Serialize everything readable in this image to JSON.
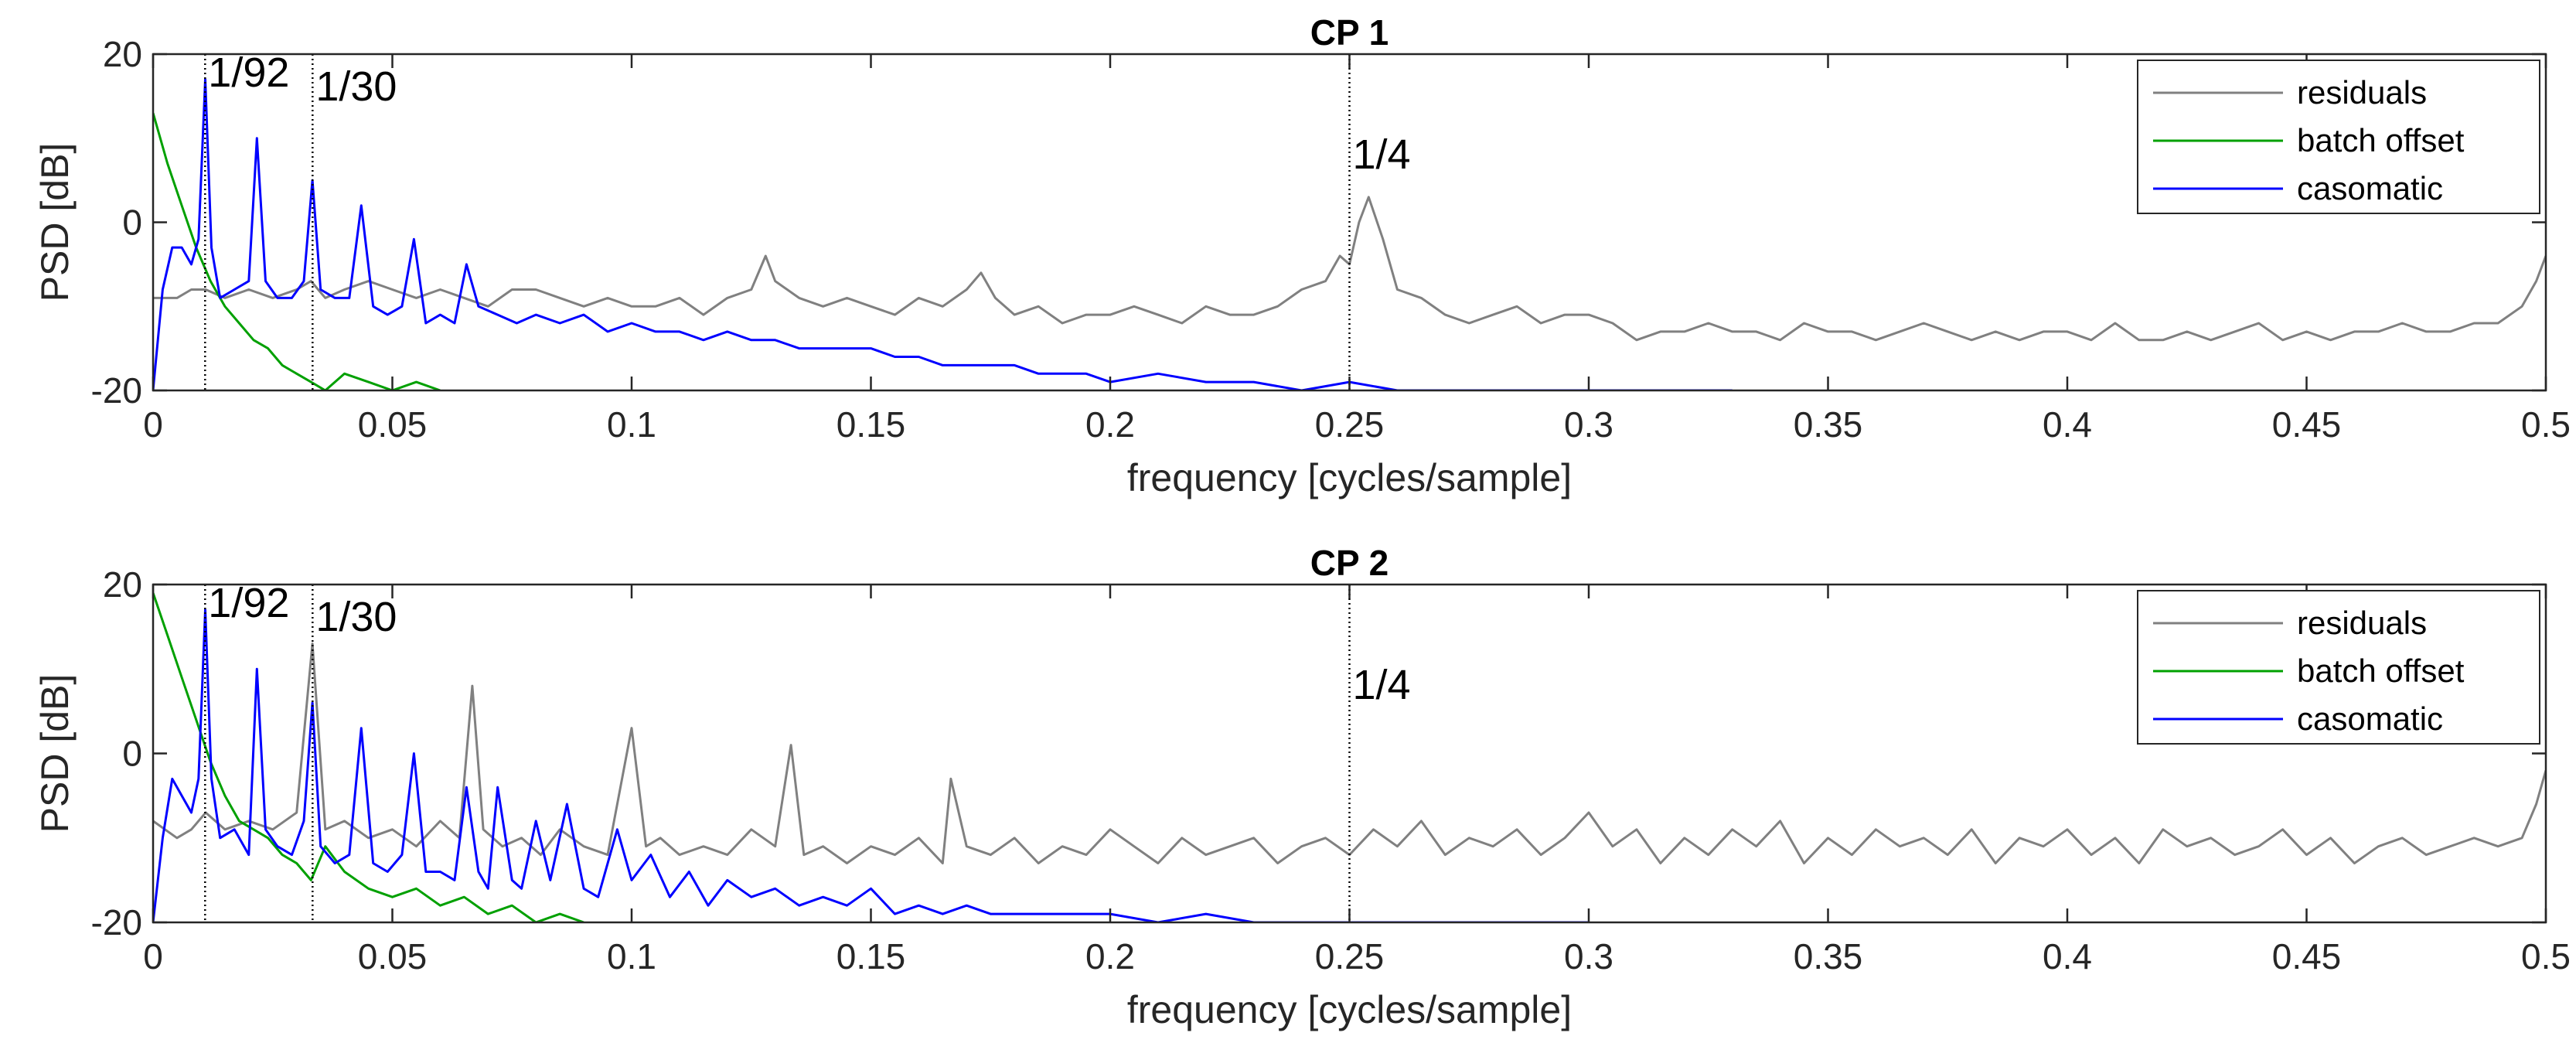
{
  "figure": {
    "colors": {
      "residuals": "#808080",
      "batch_offset": "#00a000",
      "casomatic": "#0000ff",
      "axes": "#262626",
      "guide": "#000000"
    }
  },
  "chart_data": [
    {
      "type": "line",
      "title": "CP 1",
      "xlabel": "frequency [cycles/sample]",
      "ylabel": "PSD [dB]",
      "xlim": [
        0,
        0.5
      ],
      "ylim": [
        -20,
        20
      ],
      "xticks": [
        "0",
        "0.05",
        "0.1",
        "0.15",
        "0.2",
        "0.25",
        "0.3",
        "0.35",
        "0.4",
        "0.45",
        "0.5"
      ],
      "yticks": [
        "-20",
        "0",
        "20"
      ],
      "grid": false,
      "legend_position": "top-right",
      "vlines": [
        {
          "x": 0.01087,
          "label": "1/92"
        },
        {
          "x": 0.03333,
          "label": "1/30"
        },
        {
          "x": 0.25,
          "label": "1/4"
        }
      ],
      "series": [
        {
          "name": "residuals",
          "color": "#808080",
          "x": [
            0.0,
            0.005,
            0.008,
            0.011,
            0.015,
            0.02,
            0.025,
            0.03,
            0.033,
            0.036,
            0.04,
            0.045,
            0.05,
            0.055,
            0.06,
            0.065,
            0.07,
            0.075,
            0.08,
            0.085,
            0.09,
            0.095,
            0.1,
            0.105,
            0.11,
            0.115,
            0.12,
            0.125,
            0.128,
            0.13,
            0.135,
            0.14,
            0.145,
            0.15,
            0.155,
            0.16,
            0.165,
            0.17,
            0.173,
            0.176,
            0.18,
            0.185,
            0.19,
            0.195,
            0.2,
            0.205,
            0.21,
            0.215,
            0.22,
            0.225,
            0.23,
            0.235,
            0.24,
            0.245,
            0.248,
            0.25,
            0.252,
            0.254,
            0.257,
            0.26,
            0.265,
            0.27,
            0.275,
            0.28,
            0.285,
            0.29,
            0.295,
            0.3,
            0.305,
            0.31,
            0.315,
            0.32,
            0.325,
            0.33,
            0.335,
            0.34,
            0.345,
            0.35,
            0.355,
            0.36,
            0.365,
            0.37,
            0.375,
            0.38,
            0.385,
            0.39,
            0.395,
            0.4,
            0.405,
            0.41,
            0.415,
            0.42,
            0.425,
            0.43,
            0.435,
            0.44,
            0.445,
            0.45,
            0.455,
            0.46,
            0.465,
            0.47,
            0.475,
            0.48,
            0.485,
            0.49,
            0.495,
            0.498,
            0.5
          ],
          "y": [
            -9,
            -9,
            -8,
            -8,
            -9,
            -8,
            -9,
            -8,
            -7,
            -9,
            -8,
            -7,
            -8,
            -9,
            -8,
            -9,
            -10,
            -8,
            -8,
            -9,
            -10,
            -9,
            -10,
            -10,
            -9,
            -11,
            -9,
            -8,
            -4,
            -7,
            -9,
            -10,
            -9,
            -10,
            -11,
            -9,
            -10,
            -8,
            -6,
            -9,
            -11,
            -10,
            -12,
            -11,
            -11,
            -10,
            -11,
            -12,
            -10,
            -11,
            -11,
            -10,
            -8,
            -7,
            -4,
            -5,
            0,
            3,
            -2,
            -8,
            -9,
            -11,
            -12,
            -11,
            -10,
            -12,
            -11,
            -11,
            -12,
            -14,
            -13,
            -13,
            -12,
            -13,
            -13,
            -14,
            -12,
            -13,
            -13,
            -14,
            -13,
            -12,
            -13,
            -14,
            -13,
            -14,
            -13,
            -13,
            -14,
            -12,
            -14,
            -14,
            -13,
            -14,
            -13,
            -12,
            -14,
            -13,
            -14,
            -13,
            -13,
            -12,
            -13,
            -13,
            -12,
            -12,
            -10,
            -7,
            -4
          ]
        },
        {
          "name": "batch offset",
          "color": "#00a000",
          "x": [
            0.0,
            0.003,
            0.006,
            0.009,
            0.012,
            0.015,
            0.018,
            0.021,
            0.024,
            0.027,
            0.03,
            0.033,
            0.036,
            0.04,
            0.045,
            0.05,
            0.055,
            0.06
          ],
          "y": [
            13,
            7,
            2,
            -3,
            -7,
            -10,
            -12,
            -14,
            -15,
            -17,
            -18,
            -19,
            -20,
            -18,
            -19,
            -20,
            -19,
            -20
          ]
        },
        {
          "name": "casomatic",
          "color": "#0000ff",
          "x": [
            0.0,
            0.002,
            0.004,
            0.006,
            0.008,
            0.0095,
            0.0109,
            0.0122,
            0.014,
            0.017,
            0.02,
            0.0217,
            0.0235,
            0.026,
            0.029,
            0.0315,
            0.0333,
            0.035,
            0.038,
            0.041,
            0.0435,
            0.046,
            0.049,
            0.052,
            0.0545,
            0.057,
            0.06,
            0.063,
            0.0655,
            0.068,
            0.072,
            0.076,
            0.08,
            0.085,
            0.09,
            0.095,
            0.1,
            0.105,
            0.11,
            0.115,
            0.12,
            0.125,
            0.13,
            0.135,
            0.14,
            0.145,
            0.15,
            0.155,
            0.16,
            0.165,
            0.17,
            0.175,
            0.18,
            0.185,
            0.19,
            0.195,
            0.2,
            0.21,
            0.22,
            0.23,
            0.24,
            0.25,
            0.26,
            0.27,
            0.28,
            0.29,
            0.3,
            0.31,
            0.32,
            0.33
          ],
          "y": [
            -20,
            -8,
            -3,
            -3,
            -5,
            -2,
            17,
            -3,
            -9,
            -8,
            -7,
            10,
            -7,
            -9,
            -9,
            -7,
            5,
            -8,
            -9,
            -9,
            2,
            -10,
            -11,
            -10,
            -2,
            -12,
            -11,
            -12,
            -5,
            -10,
            -11,
            -12,
            -11,
            -12,
            -11,
            -13,
            -12,
            -13,
            -13,
            -14,
            -13,
            -14,
            -14,
            -15,
            -15,
            -15,
            -15,
            -16,
            -16,
            -17,
            -17,
            -17,
            -17,
            -18,
            -18,
            -18,
            -19,
            -18,
            -19,
            -19,
            -20,
            -19,
            -20,
            -20,
            -20,
            -20,
            -20,
            -20,
            -20,
            -20
          ]
        }
      ]
    },
    {
      "type": "line",
      "title": "CP 2",
      "xlabel": "frequency [cycles/sample]",
      "ylabel": "PSD [dB]",
      "xlim": [
        0,
        0.5
      ],
      "ylim": [
        -20,
        20
      ],
      "xticks": [
        "0",
        "0.05",
        "0.1",
        "0.15",
        "0.2",
        "0.25",
        "0.3",
        "0.35",
        "0.4",
        "0.45",
        "0.5"
      ],
      "yticks": [
        "-20",
        "0",
        "20"
      ],
      "grid": false,
      "legend_position": "top-right",
      "vlines": [
        {
          "x": 0.01087,
          "label": "1/92"
        },
        {
          "x": 0.03333,
          "label": "1/30"
        },
        {
          "x": 0.25,
          "label": "1/4"
        }
      ],
      "series": [
        {
          "name": "residuals",
          "color": "#808080",
          "x": [
            0.0,
            0.005,
            0.008,
            0.011,
            0.015,
            0.02,
            0.025,
            0.03,
            0.0333,
            0.036,
            0.04,
            0.045,
            0.05,
            0.055,
            0.06,
            0.064,
            0.0667,
            0.069,
            0.073,
            0.077,
            0.081,
            0.085,
            0.09,
            0.095,
            0.1,
            0.103,
            0.106,
            0.11,
            0.115,
            0.12,
            0.125,
            0.13,
            0.1333,
            0.136,
            0.14,
            0.145,
            0.15,
            0.155,
            0.16,
            0.165,
            0.1667,
            0.17,
            0.175,
            0.18,
            0.185,
            0.19,
            0.195,
            0.2,
            0.205,
            0.21,
            0.215,
            0.22,
            0.225,
            0.23,
            0.235,
            0.24,
            0.245,
            0.25,
            0.255,
            0.26,
            0.265,
            0.27,
            0.275,
            0.28,
            0.285,
            0.29,
            0.295,
            0.3,
            0.305,
            0.31,
            0.315,
            0.32,
            0.325,
            0.33,
            0.335,
            0.34,
            0.345,
            0.35,
            0.355,
            0.36,
            0.365,
            0.37,
            0.375,
            0.38,
            0.385,
            0.39,
            0.395,
            0.4,
            0.405,
            0.41,
            0.415,
            0.42,
            0.425,
            0.43,
            0.435,
            0.44,
            0.445,
            0.45,
            0.455,
            0.46,
            0.465,
            0.47,
            0.475,
            0.48,
            0.485,
            0.49,
            0.495,
            0.498,
            0.5
          ],
          "y": [
            -8,
            -10,
            -9,
            -7,
            -9,
            -8,
            -9,
            -7,
            13,
            -9,
            -8,
            -10,
            -9,
            -11,
            -8,
            -10,
            8,
            -9,
            -11,
            -10,
            -12,
            -9,
            -11,
            -12,
            3,
            -11,
            -10,
            -12,
            -11,
            -12,
            -9,
            -11,
            1,
            -12,
            -11,
            -13,
            -11,
            -12,
            -10,
            -13,
            -3,
            -11,
            -12,
            -10,
            -13,
            -11,
            -12,
            -9,
            -11,
            -13,
            -10,
            -12,
            -11,
            -10,
            -13,
            -11,
            -10,
            -12,
            -9,
            -11,
            -8,
            -12,
            -10,
            -11,
            -9,
            -12,
            -10,
            -7,
            -11,
            -9,
            -13,
            -10,
            -12,
            -9,
            -11,
            -8,
            -13,
            -10,
            -12,
            -9,
            -11,
            -10,
            -12,
            -9,
            -13,
            -10,
            -11,
            -9,
            -12,
            -10,
            -13,
            -9,
            -11,
            -10,
            -12,
            -11,
            -9,
            -12,
            -10,
            -13,
            -11,
            -10,
            -12,
            -11,
            -10,
            -11,
            -10,
            -6,
            -2
          ]
        },
        {
          "name": "batch offset",
          "color": "#00a000",
          "x": [
            0.0,
            0.003,
            0.006,
            0.009,
            0.012,
            0.015,
            0.018,
            0.021,
            0.024,
            0.027,
            0.03,
            0.033,
            0.036,
            0.04,
            0.045,
            0.05,
            0.055,
            0.06,
            0.065,
            0.07,
            0.075,
            0.08,
            0.085,
            0.09
          ],
          "y": [
            19,
            14,
            9,
            4,
            -1,
            -5,
            -8,
            -9,
            -10,
            -12,
            -13,
            -15,
            -11,
            -14,
            -16,
            -17,
            -16,
            -18,
            -17,
            -19,
            -18,
            -20,
            -19,
            -20
          ]
        },
        {
          "name": "casomatic",
          "color": "#0000ff",
          "x": [
            0.0,
            0.002,
            0.004,
            0.006,
            0.008,
            0.0095,
            0.0109,
            0.0122,
            0.014,
            0.017,
            0.02,
            0.0217,
            0.0235,
            0.026,
            0.029,
            0.0315,
            0.0333,
            0.035,
            0.038,
            0.041,
            0.0435,
            0.046,
            0.049,
            0.052,
            0.0545,
            0.057,
            0.06,
            0.063,
            0.0655,
            0.068,
            0.07,
            0.072,
            0.075,
            0.077,
            0.08,
            0.083,
            0.0865,
            0.09,
            0.093,
            0.097,
            0.1,
            0.104,
            0.108,
            0.112,
            0.116,
            0.12,
            0.125,
            0.13,
            0.135,
            0.14,
            0.145,
            0.15,
            0.155,
            0.16,
            0.165,
            0.17,
            0.175,
            0.18,
            0.19,
            0.2,
            0.21,
            0.22,
            0.23,
            0.24,
            0.25,
            0.26,
            0.27,
            0.28,
            0.29,
            0.3
          ],
          "y": [
            -20,
            -10,
            -3,
            -5,
            -7,
            -3,
            17,
            -3,
            -10,
            -9,
            -12,
            10,
            -9,
            -11,
            -12,
            -8,
            6,
            -11,
            -13,
            -12,
            3,
            -13,
            -14,
            -12,
            0,
            -14,
            -14,
            -15,
            -4,
            -14,
            -16,
            -4,
            -15,
            -16,
            -8,
            -15,
            -6,
            -16,
            -17,
            -9,
            -15,
            -12,
            -17,
            -14,
            -18,
            -15,
            -17,
            -16,
            -18,
            -17,
            -18,
            -16,
            -19,
            -18,
            -19,
            -18,
            -19,
            -19,
            -19,
            -19,
            -20,
            -19,
            -20,
            -20,
            -20,
            -20,
            -20,
            -20,
            -20,
            -20
          ]
        }
      ]
    }
  ]
}
